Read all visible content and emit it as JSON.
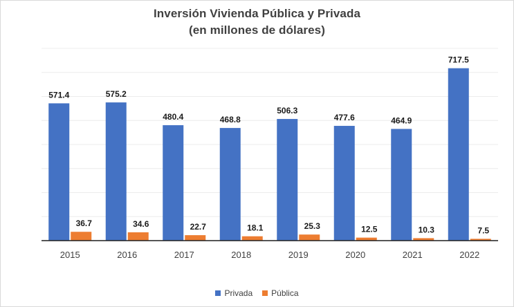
{
  "chart_data": {
    "type": "bar",
    "title": "Inversión Vivienda Pública y Privada",
    "subtitle": "(en millones de dólares)",
    "categories": [
      "2015",
      "2016",
      "2017",
      "2018",
      "2019",
      "2020",
      "2021",
      "2022"
    ],
    "series": [
      {
        "name": "Privada",
        "color": "#4472c4",
        "values": [
          571.4,
          575.2,
          480.4,
          468.8,
          506.3,
          477.6,
          464.9,
          717.5
        ],
        "labels": [
          "571.4",
          "575.2",
          "480.4",
          "468.8",
          "506.3",
          "477.6",
          "464.9",
          "717.5"
        ]
      },
      {
        "name": "Pública",
        "color": "#ed7d31",
        "values": [
          36.7,
          34.6,
          22.7,
          18.1,
          25.3,
          12.5,
          10.3,
          7.5
        ],
        "labels": [
          "36.7",
          "34.6",
          "22.7",
          "18.1",
          "25.3",
          "12.5",
          "10.3",
          "7.5"
        ]
      }
    ],
    "xlabel": "",
    "ylabel": "",
    "ylim": [
      0,
      800
    ],
    "grid": true,
    "legend_position": "bottom"
  }
}
